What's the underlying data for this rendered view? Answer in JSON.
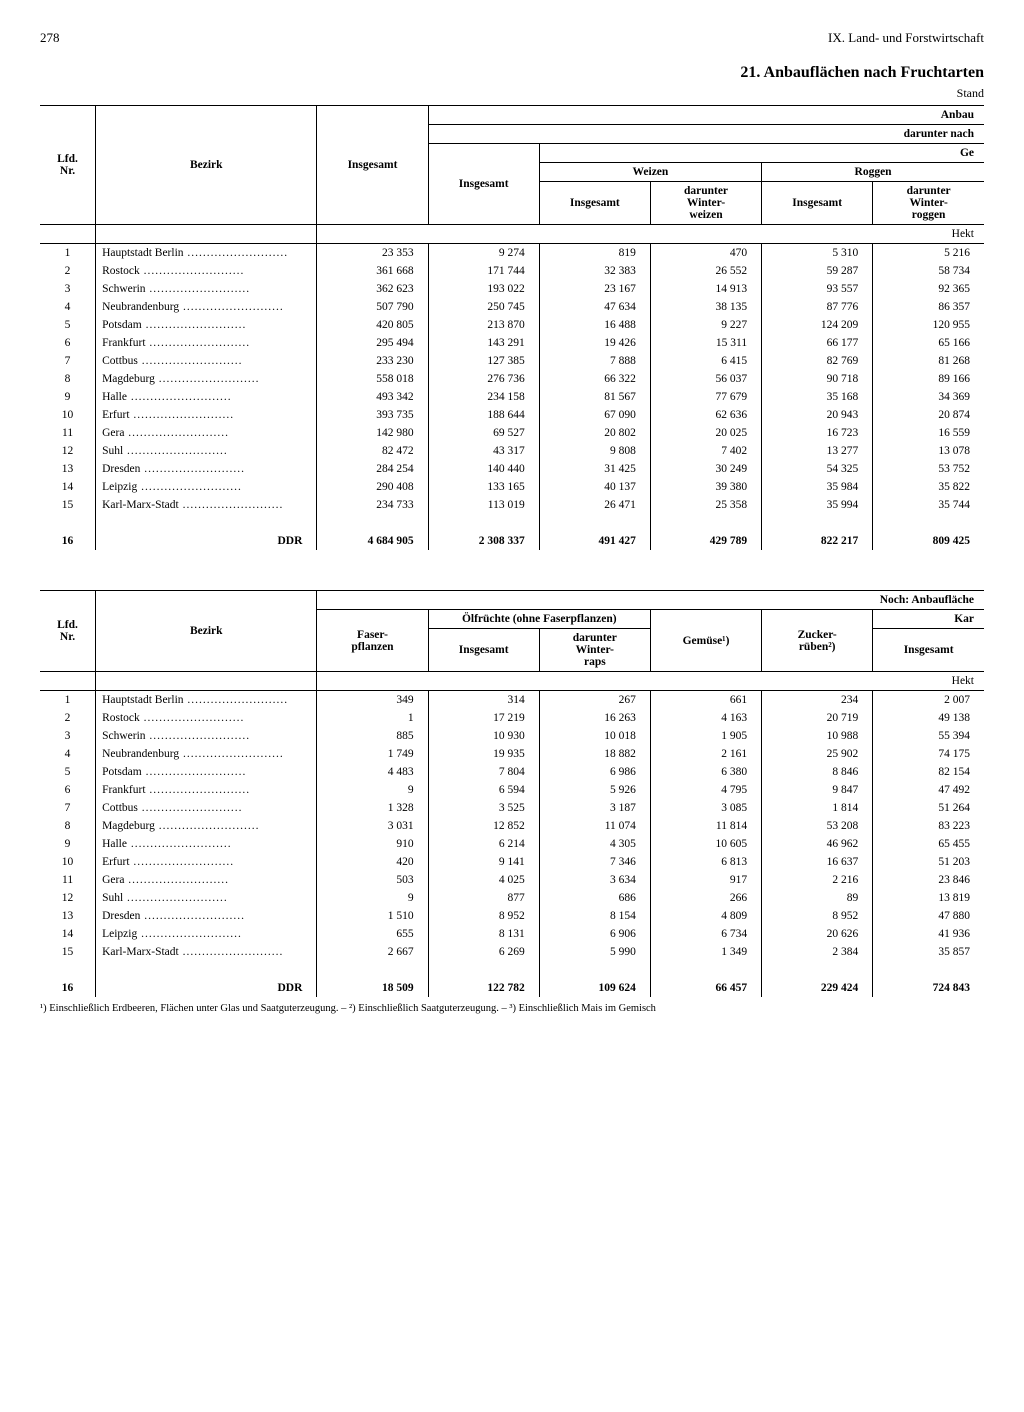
{
  "page_number": "278",
  "chapter": "IX. Land- und Forstwirtschaft",
  "title": "21. Anbauflächen nach Fruchtarten",
  "stand": "Stand",
  "unit": "Hekt",
  "labels": {
    "lfd": "Lfd.\nNr.",
    "bezirk": "Bezirk",
    "insgesamt": "Insgesamt",
    "anbau": "Anbau",
    "darunter_nach": "darunter nach",
    "ge": "Ge",
    "weizen": "Weizen",
    "roggen": "Roggen",
    "dar_winterweizen": "darunter\nWinter-\nweizen",
    "dar_winterroggen": "darunter\nWinter-\nroggen",
    "noch_anbau": "Noch: Anbaufläche",
    "faserpflanzen": "Faser-\npflanzen",
    "olfruechte": "Ölfrüchte (ohne Faserpflanzen)",
    "dar_winterraps": "darunter\nWinter-\nraps",
    "gemuese": "Gemüse¹)",
    "zuckerrueben": "Zucker-\nrüben²)",
    "kar": "Kar"
  },
  "footnote": "¹) Einschließlich Erdbeeren, Flächen unter Glas und Saatguterzeugung. – ²) Einschließlich Saatguterzeugung. – ³) Einschließlich Mais im Gemisch",
  "rows1": [
    {
      "n": "1",
      "b": "Hauptstadt Berlin",
      "c": [
        "23 353",
        "9 274",
        "819",
        "470",
        "5 310",
        "5 216"
      ]
    },
    {
      "n": "2",
      "b": "Rostock",
      "c": [
        "361 668",
        "171 744",
        "32 383",
        "26 552",
        "59 287",
        "58 734"
      ]
    },
    {
      "n": "3",
      "b": "Schwerin",
      "c": [
        "362 623",
        "193 022",
        "23 167",
        "14 913",
        "93 557",
        "92 365"
      ]
    },
    {
      "n": "4",
      "b": "Neubrandenburg",
      "c": [
        "507 790",
        "250 745",
        "47 634",
        "38 135",
        "87 776",
        "86 357"
      ]
    },
    {
      "n": "5",
      "b": "Potsdam",
      "c": [
        "420 805",
        "213 870",
        "16 488",
        "9 227",
        "124 209",
        "120 955"
      ]
    },
    {
      "n": "6",
      "b": "Frankfurt",
      "c": [
        "295 494",
        "143 291",
        "19 426",
        "15 311",
        "66 177",
        "65 166"
      ]
    },
    {
      "n": "7",
      "b": "Cottbus",
      "c": [
        "233 230",
        "127 385",
        "7 888",
        "6 415",
        "82 769",
        "81 268"
      ]
    },
    {
      "n": "8",
      "b": "Magdeburg",
      "c": [
        "558 018",
        "276 736",
        "66 322",
        "56 037",
        "90 718",
        "89 166"
      ]
    },
    {
      "n": "9",
      "b": "Halle",
      "c": [
        "493 342",
        "234 158",
        "81 567",
        "77 679",
        "35 168",
        "34 369"
      ]
    },
    {
      "n": "10",
      "b": "Erfurt",
      "c": [
        "393 735",
        "188 644",
        "67 090",
        "62 636",
        "20 943",
        "20 874"
      ]
    },
    {
      "n": "11",
      "b": "Gera",
      "c": [
        "142 980",
        "69 527",
        "20 802",
        "20 025",
        "16 723",
        "16 559"
      ]
    },
    {
      "n": "12",
      "b": "Suhl",
      "c": [
        "82 472",
        "43 317",
        "9 808",
        "7 402",
        "13 277",
        "13 078"
      ]
    },
    {
      "n": "13",
      "b": "Dresden",
      "c": [
        "284 254",
        "140 440",
        "31 425",
        "30 249",
        "54 325",
        "53 752"
      ]
    },
    {
      "n": "14",
      "b": "Leipzig",
      "c": [
        "290 408",
        "133 165",
        "40 137",
        "39 380",
        "35 984",
        "35 822"
      ]
    },
    {
      "n": "15",
      "b": "Karl-Marx-Stadt",
      "c": [
        "234 733",
        "113 019",
        "26 471",
        "25 358",
        "35 994",
        "35 744"
      ]
    }
  ],
  "total1": {
    "n": "16",
    "b": "DDR",
    "c": [
      "4 684 905",
      "2 308 337",
      "491 427",
      "429 789",
      "822 217",
      "809 425"
    ]
  },
  "rows2": [
    {
      "n": "1",
      "b": "Hauptstadt Berlin",
      "c": [
        "349",
        "314",
        "267",
        "661",
        "234",
        "2 007"
      ]
    },
    {
      "n": "2",
      "b": "Rostock",
      "c": [
        "1",
        "17 219",
        "16 263",
        "4 163",
        "20 719",
        "49 138"
      ]
    },
    {
      "n": "3",
      "b": "Schwerin",
      "c": [
        "885",
        "10 930",
        "10 018",
        "1 905",
        "10 988",
        "55 394"
      ]
    },
    {
      "n": "4",
      "b": "Neubrandenburg",
      "c": [
        "1 749",
        "19 935",
        "18 882",
        "2 161",
        "25 902",
        "74 175"
      ]
    },
    {
      "n": "5",
      "b": "Potsdam",
      "c": [
        "4 483",
        "7 804",
        "6 986",
        "6 380",
        "8 846",
        "82 154"
      ]
    },
    {
      "n": "6",
      "b": "Frankfurt",
      "c": [
        "9",
        "6 594",
        "5 926",
        "4 795",
        "9 847",
        "47 492"
      ]
    },
    {
      "n": "7",
      "b": "Cottbus",
      "c": [
        "1 328",
        "3 525",
        "3 187",
        "3 085",
        "1 814",
        "51 264"
      ]
    },
    {
      "n": "8",
      "b": "Magdeburg",
      "c": [
        "3 031",
        "12 852",
        "11 074",
        "11 814",
        "53 208",
        "83 223"
      ]
    },
    {
      "n": "9",
      "b": "Halle",
      "c": [
        "910",
        "6 214",
        "4 305",
        "10 605",
        "46 962",
        "65 455"
      ]
    },
    {
      "n": "10",
      "b": "Erfurt",
      "c": [
        "420",
        "9 141",
        "7 346",
        "6 813",
        "16 637",
        "51 203"
      ]
    },
    {
      "n": "11",
      "b": "Gera",
      "c": [
        "503",
        "4 025",
        "3 634",
        "917",
        "2 216",
        "23 846"
      ]
    },
    {
      "n": "12",
      "b": "Suhl",
      "c": [
        "9",
        "877",
        "686",
        "266",
        "89",
        "13 819"
      ]
    },
    {
      "n": "13",
      "b": "Dresden",
      "c": [
        "1 510",
        "8 952",
        "8 154",
        "4 809",
        "8 952",
        "47 880"
      ]
    },
    {
      "n": "14",
      "b": "Leipzig",
      "c": [
        "655",
        "8 131",
        "6 906",
        "6 734",
        "20 626",
        "41 936"
      ]
    },
    {
      "n": "15",
      "b": "Karl-Marx-Stadt",
      "c": [
        "2 667",
        "6 269",
        "5 990",
        "1 349",
        "2 384",
        "35 857"
      ]
    }
  ],
  "total2": {
    "n": "16",
    "b": "DDR",
    "c": [
      "18 509",
      "122 782",
      "109 624",
      "66 457",
      "229 424",
      "724 843"
    ]
  }
}
